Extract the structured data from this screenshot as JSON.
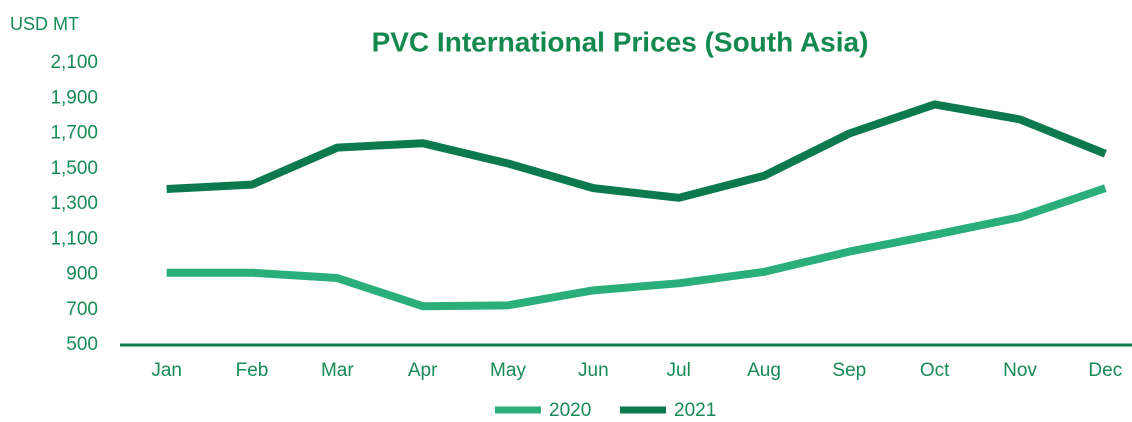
{
  "chart_data": {
    "type": "line",
    "title": "PVC International Prices (South Asia)",
    "y_label": "USD MT",
    "categories": [
      "Jan",
      "Feb",
      "Mar",
      "Apr",
      "May",
      "Jun",
      "Jul",
      "Aug",
      "Sep",
      "Oct",
      "Nov",
      "Dec"
    ],
    "series": [
      {
        "name": "2020",
        "color": "#2aae7a",
        "values": [
          910,
          910,
          880,
          720,
          725,
          810,
          850,
          915,
          1030,
          1125,
          1225,
          1390
        ]
      },
      {
        "name": "2021",
        "color": "#0c7a4e",
        "values": [
          1385,
          1410,
          1620,
          1645,
          1530,
          1390,
          1335,
          1460,
          1700,
          1865,
          1780,
          1585
        ]
      }
    ],
    "ylim": [
      500,
      2100
    ],
    "yticks": [
      500,
      700,
      900,
      {
        "value": 1100,
        "label": "1,100"
      },
      {
        "value": 1300,
        "label": "1,300"
      },
      {
        "value": 1500,
        "label": "1,500"
      },
      {
        "value": 1700,
        "label": "1,700"
      },
      {
        "value": 1900,
        "label": "1,900"
      },
      {
        "value": 2100,
        "label": "2,100"
      }
    ],
    "legend": "bottom"
  }
}
